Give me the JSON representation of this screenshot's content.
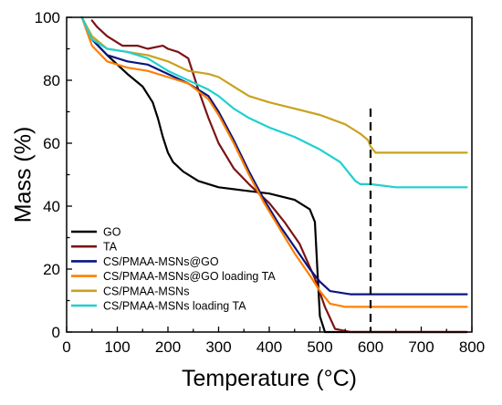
{
  "chart_data": {
    "type": "line",
    "xlabel": "Temperature (°C)",
    "ylabel": "Mass (%)",
    "xlim": [
      0,
      800
    ],
    "ylim": [
      0,
      100
    ],
    "x_ticks": [
      0,
      100,
      200,
      300,
      400,
      500,
      600,
      700,
      800
    ],
    "y_ticks": [
      0,
      20,
      40,
      60,
      80,
      100
    ],
    "grid": false,
    "legend_position": "bottom-left",
    "reference_line": {
      "x": 600,
      "style": "dashed",
      "color": "#000000"
    },
    "series": [
      {
        "name": "GO",
        "color": "#000000",
        "x": [
          30,
          50,
          80,
          120,
          150,
          170,
          180,
          190,
          200,
          210,
          230,
          260,
          300,
          350,
          400,
          450,
          480,
          490,
          495,
          500,
          510,
          550,
          600,
          700,
          790
        ],
        "y": [
          100,
          93,
          88,
          82,
          78,
          73,
          68,
          62,
          57,
          54,
          51,
          48,
          46,
          45,
          44,
          42,
          39,
          35,
          20,
          5,
          0,
          0,
          0,
          0,
          0
        ]
      },
      {
        "name": "TA",
        "color": "#7b1416",
        "x": [
          50,
          60,
          80,
          110,
          140,
          160,
          190,
          200,
          220,
          240,
          250,
          260,
          280,
          300,
          330,
          360,
          400,
          430,
          460,
          490,
          510,
          530,
          560,
          700,
          790
        ],
        "y": [
          99,
          97,
          94,
          91,
          91,
          90,
          91,
          90,
          89,
          87,
          82,
          77,
          68,
          60,
          52,
          47,
          41,
          35,
          28,
          17,
          8,
          1,
          0,
          0,
          0
        ]
      },
      {
        "name": "CS/PMAA-MSNs@GO",
        "color": "#0a1580",
        "x": [
          30,
          50,
          80,
          120,
          160,
          200,
          240,
          280,
          300,
          330,
          360,
          390,
          420,
          450,
          480,
          500,
          520,
          560,
          600,
          700,
          790
        ],
        "y": [
          100,
          93,
          88,
          86,
          85,
          82,
          79,
          75,
          70,
          61,
          51,
          42,
          34,
          27,
          20,
          16,
          13,
          12,
          12,
          12,
          12
        ]
      },
      {
        "name": "CS/PMAA-MSNs@GO loading TA",
        "color": "#ff7f00",
        "x": [
          30,
          50,
          80,
          120,
          160,
          200,
          240,
          280,
          300,
          330,
          360,
          390,
          420,
          450,
          480,
          500,
          520,
          550,
          600,
          700,
          790
        ],
        "y": [
          100,
          91,
          86,
          84,
          83,
          81,
          79,
          74,
          69,
          60,
          50,
          41,
          33,
          25,
          18,
          13,
          9,
          8,
          8,
          8,
          8
        ]
      },
      {
        "name": "CS/PMAA-MSNs",
        "color": "#c9a21e",
        "x": [
          30,
          50,
          80,
          120,
          160,
          200,
          240,
          280,
          300,
          330,
          360,
          400,
          450,
          500,
          550,
          580,
          595,
          600,
          610,
          650,
          700,
          790
        ],
        "y": [
          100,
          94,
          90,
          89,
          88,
          86,
          83,
          82,
          81,
          78,
          75,
          73,
          71,
          69,
          66,
          63,
          61,
          59,
          57,
          57,
          57,
          57
        ]
      },
      {
        "name": "CS/PMAA-MSNs loading TA",
        "color": "#1fd0d0",
        "x": [
          30,
          50,
          80,
          120,
          160,
          200,
          240,
          280,
          300,
          330,
          360,
          400,
          450,
          500,
          540,
          560,
          570,
          580,
          600,
          650,
          700,
          790
        ],
        "y": [
          100,
          93,
          90,
          89,
          87,
          83,
          80,
          77,
          75,
          71,
          68,
          65,
          62,
          58,
          54,
          50,
          48,
          47,
          47,
          46,
          46,
          46
        ]
      }
    ]
  }
}
